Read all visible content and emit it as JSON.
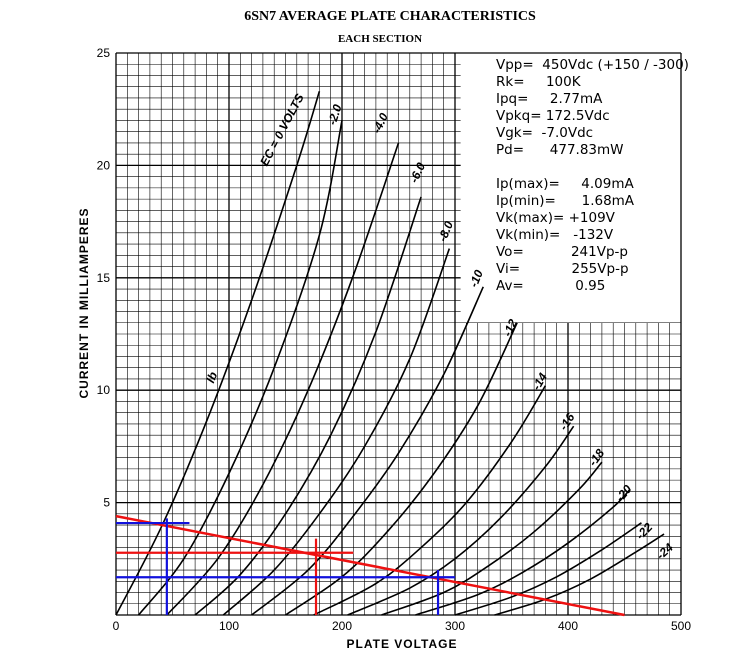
{
  "chart_data": {
    "type": "line",
    "title": "6SN7 AVERAGE PLATE CHARACTERISTICS",
    "subtitle": "EACH SECTION",
    "xlabel": "PLATE VOLTAGE",
    "ylabel": "CURRENT IN MILLIAMPERES",
    "xlim": [
      0,
      500
    ],
    "ylim": [
      0,
      25
    ],
    "x_ticks": [
      "0",
      "100",
      "200",
      "300",
      "400",
      "500"
    ],
    "y_ticks": [
      "5",
      "10",
      "15",
      "20",
      "25"
    ],
    "grid": true,
    "series": [
      {
        "name": "EC = 0 VOLTS",
        "x": [
          0,
          40,
          80,
          120,
          160,
          180
        ],
        "y": [
          0,
          3.9,
          8.6,
          14.0,
          20.0,
          23.3
        ]
      },
      {
        "name": "-2.0",
        "x": [
          20,
          60,
          100,
          140,
          180,
          200
        ],
        "y": [
          0,
          2.5,
          6.3,
          11.0,
          16.9,
          22.0
        ]
      },
      {
        "name": "-4.0",
        "x": [
          45,
          90,
          130,
          170,
          210,
          250
        ],
        "y": [
          0,
          2.5,
          5.8,
          10.0,
          15.1,
          21.0
        ]
      },
      {
        "name": "-6.0",
        "x": [
          70,
          110,
          150,
          190,
          230,
          270
        ],
        "y": [
          0,
          1.8,
          4.5,
          8.0,
          12.6,
          18.6
        ]
      },
      {
        "name": "-8.0",
        "x": [
          95,
          140,
          180,
          220,
          260,
          295
        ],
        "y": [
          0,
          2.0,
          4.5,
          7.5,
          11.4,
          16.3
        ]
      },
      {
        "name": "-10",
        "x": [
          120,
          170,
          210,
          250,
          290,
          325
        ],
        "y": [
          0,
          2.0,
          4.4,
          7.2,
          10.7,
          14.6
        ]
      },
      {
        "name": "-12",
        "x": [
          150,
          200,
          240,
          280,
          320,
          355
        ],
        "y": [
          0,
          1.7,
          3.7,
          6.2,
          9.3,
          13.0
        ]
      },
      {
        "name": "-14",
        "x": [
          175,
          230,
          270,
          310,
          350,
          380
        ],
        "y": [
          0,
          1.4,
          3.0,
          5.0,
          7.7,
          10.2
        ]
      },
      {
        "name": "-16",
        "x": [
          205,
          260,
          300,
          340,
          380,
          405
        ],
        "y": [
          0,
          1.2,
          2.5,
          4.3,
          6.6,
          8.4
        ]
      },
      {
        "name": "-18",
        "x": [
          235,
          290,
          330,
          370,
          410,
          430
        ],
        "y": [
          0,
          1.0,
          2.2,
          3.7,
          5.6,
          6.8
        ]
      },
      {
        "name": "-20",
        "x": [
          265,
          320,
          360,
          400,
          440,
          455
        ],
        "y": [
          0,
          0.9,
          1.9,
          3.2,
          4.8,
          5.6
        ]
      },
      {
        "name": "-22",
        "x": [
          300,
          350,
          390,
          430,
          465
        ],
        "y": [
          0,
          0.8,
          1.7,
          2.9,
          4.1
        ]
      },
      {
        "name": "-24",
        "x": [
          335,
          380,
          420,
          460,
          485
        ],
        "y": [
          0,
          0.7,
          1.6,
          2.8,
          3.6
        ]
      }
    ],
    "curve_labels": [
      {
        "text": "EC = 0 VOLTS",
        "x": 150,
        "y": 21.5,
        "angle": -62
      },
      {
        "text": "-2.0",
        "x": 197,
        "y": 22.2,
        "angle": -72
      },
      {
        "text": "-4.0",
        "x": 237,
        "y": 21.8,
        "angle": -64
      },
      {
        "text": "-6.0",
        "x": 270,
        "y": 19.6,
        "angle": -65
      },
      {
        "text": "-8.0",
        "x": 295,
        "y": 17.0,
        "angle": -68
      },
      {
        "text": "-10",
        "x": 322,
        "y": 14.9,
        "angle": -68
      },
      {
        "text": "-12",
        "x": 352,
        "y": 12.7,
        "angle": -65
      },
      {
        "text": "-14",
        "x": 378,
        "y": 10.3,
        "angle": -60
      },
      {
        "text": "-16",
        "x": 402,
        "y": 8.5,
        "angle": -57
      },
      {
        "text": "-18",
        "x": 428,
        "y": 6.9,
        "angle": -54
      },
      {
        "text": "-20",
        "x": 452,
        "y": 5.3,
        "angle": -50
      },
      {
        "text": "-22",
        "x": 470,
        "y": 3.6,
        "angle": -46
      },
      {
        "text": "-24",
        "x": 488,
        "y": 2.7,
        "angle": -42
      },
      {
        "text": "Ib",
        "x": 88,
        "y": 10.5,
        "angle": -68
      }
    ],
    "load_line": {
      "x": [
        0,
        450
      ],
      "y": [
        4.4,
        0
      ],
      "color": "#ee1111"
    },
    "operating_point_lines": [
      {
        "kind": "horizontal",
        "y": 2.77,
        "x": [
          0,
          210
        ],
        "color": "#ee1111"
      },
      {
        "kind": "vertical",
        "x": 177,
        "y": [
          0,
          3.4
        ],
        "color": "#ee1111"
      },
      {
        "kind": "horizontal",
        "y": 4.09,
        "x": [
          0,
          65
        ],
        "color": "#1111dd"
      },
      {
        "kind": "vertical",
        "x": 45,
        "y": [
          0,
          4.3
        ],
        "color": "#1111dd"
      },
      {
        "kind": "horizontal",
        "y": 1.68,
        "x": [
          0,
          300
        ],
        "color": "#1111dd"
      },
      {
        "kind": "vertical",
        "x": 285,
        "y": [
          0,
          2.0
        ],
        "color": "#1111dd"
      }
    ]
  },
  "info": {
    "lines": [
      "Vpp=  450Vdc (+150 / -300)",
      "Rk=     100K",
      "Ipq=     2.77mA",
      "Vpkq= 172.5Vdc",
      "Vgk=  -7.0Vdc",
      "Pd=      477.83mW",
      "Ip(max)=     4.09mA",
      "Ip(min)=      1.68mA",
      "Vk(max)= +109V",
      "Vk(min)=   -132V",
      "Vo=           241Vp-p",
      "Vi=            255Vp-p",
      "Av=            0.95"
    ]
  },
  "colors": {
    "load_line": "#ee1111",
    "marker_blue": "#1111dd",
    "grid": "#000000"
  }
}
